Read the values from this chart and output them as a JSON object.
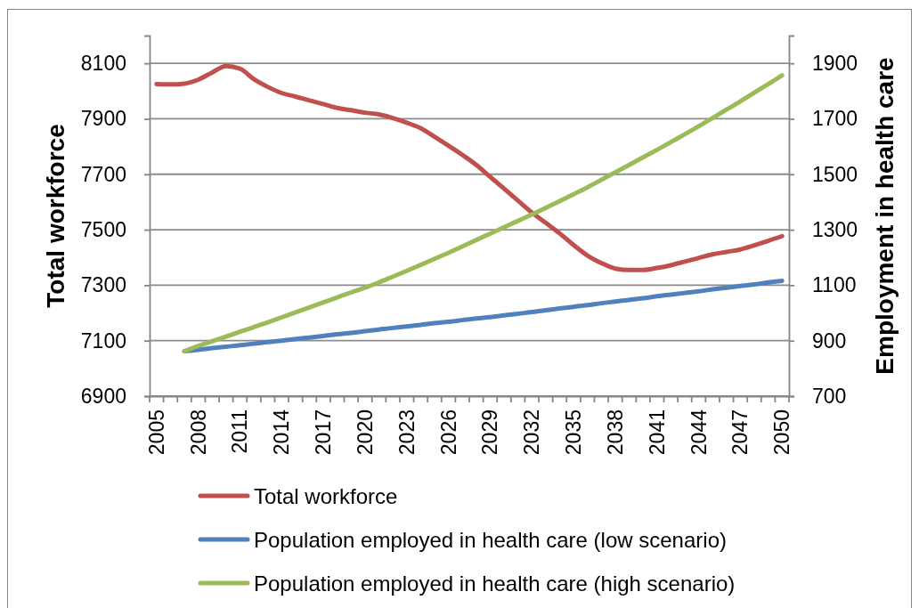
{
  "chart_data": {
    "type": "line",
    "ylabel": "Total workforce",
    "y2label": "Employment in health care",
    "categories": [
      "2005",
      null,
      null,
      "2008",
      null,
      null,
      "2011",
      null,
      null,
      "2014",
      null,
      null,
      "2017",
      null,
      null,
      "2020",
      null,
      null,
      "2023",
      null,
      null,
      "2026",
      null,
      null,
      "2029",
      null,
      null,
      "2032",
      null,
      null,
      "2035",
      null,
      null,
      "2038",
      null,
      null,
      "2041",
      null,
      null,
      "2044",
      null,
      null,
      "2047",
      null,
      null,
      "2050"
    ],
    "series": [
      {
        "name": "Total workforce",
        "color": "#c0504d",
        "values": [
          8025,
          8024,
          8027,
          8041,
          8067,
          8090,
          8081,
          8043,
          8015,
          7993,
          7980,
          7966,
          7953,
          7939,
          7931,
          7922,
          7916,
          7903,
          7886,
          7866,
          7835,
          7803,
          7770,
          7734,
          7691,
          7648,
          7605,
          7562,
          7525,
          7487,
          7445,
          7407,
          7380,
          7360,
          7355,
          7355,
          7362,
          7372,
          7385,
          7398,
          7411,
          7420,
          7429,
          7444,
          7460,
          7477
        ]
      },
      {
        "name": "Population employed in health care (low scenario)",
        "color": "#4f81bd",
        "axis": "y2",
        "values": [
          null,
          null,
          862,
          867,
          873,
          878,
          884,
          889,
          895,
          900,
          906,
          911,
          917,
          923,
          928,
          934,
          940,
          946,
          951,
          957,
          963,
          968,
          974,
          980,
          985,
          991,
          997,
          1003,
          1010,
          1016,
          1022,
          1028,
          1035,
          1041,
          1047,
          1053,
          1060,
          1066,
          1072,
          1078,
          1085,
          1091,
          1097,
          1103,
          1110,
          1116
        ]
      },
      {
        "name": "Population employed in health care (high scenario)",
        "color": "#9bbb59",
        "axis": "y2",
        "values": [
          null,
          null,
          862,
          881,
          898,
          915,
          932,
          949,
          966,
          984,
          1002,
          1020,
          1038,
          1056,
          1074,
          1091,
          1110,
          1131,
          1152,
          1173,
          1195,
          1217,
          1240,
          1263,
          1286,
          1309,
          1332,
          1355,
          1379,
          1403,
          1428,
          1453,
          1480,
          1507,
          1534,
          1561,
          1588,
          1616,
          1644,
          1673,
          1703,
          1733,
          1763,
          1794,
          1825,
          1857
        ]
      }
    ],
    "ylim": [
      6900,
      8200
    ],
    "yticks": [
      6900,
      7100,
      7300,
      7500,
      7700,
      7900,
      8100
    ],
    "y2lim": [
      700,
      2000
    ],
    "y2ticks": [
      700,
      900,
      1100,
      1300,
      1500,
      1700,
      1900
    ],
    "grid": "y",
    "legend": "bottom"
  }
}
